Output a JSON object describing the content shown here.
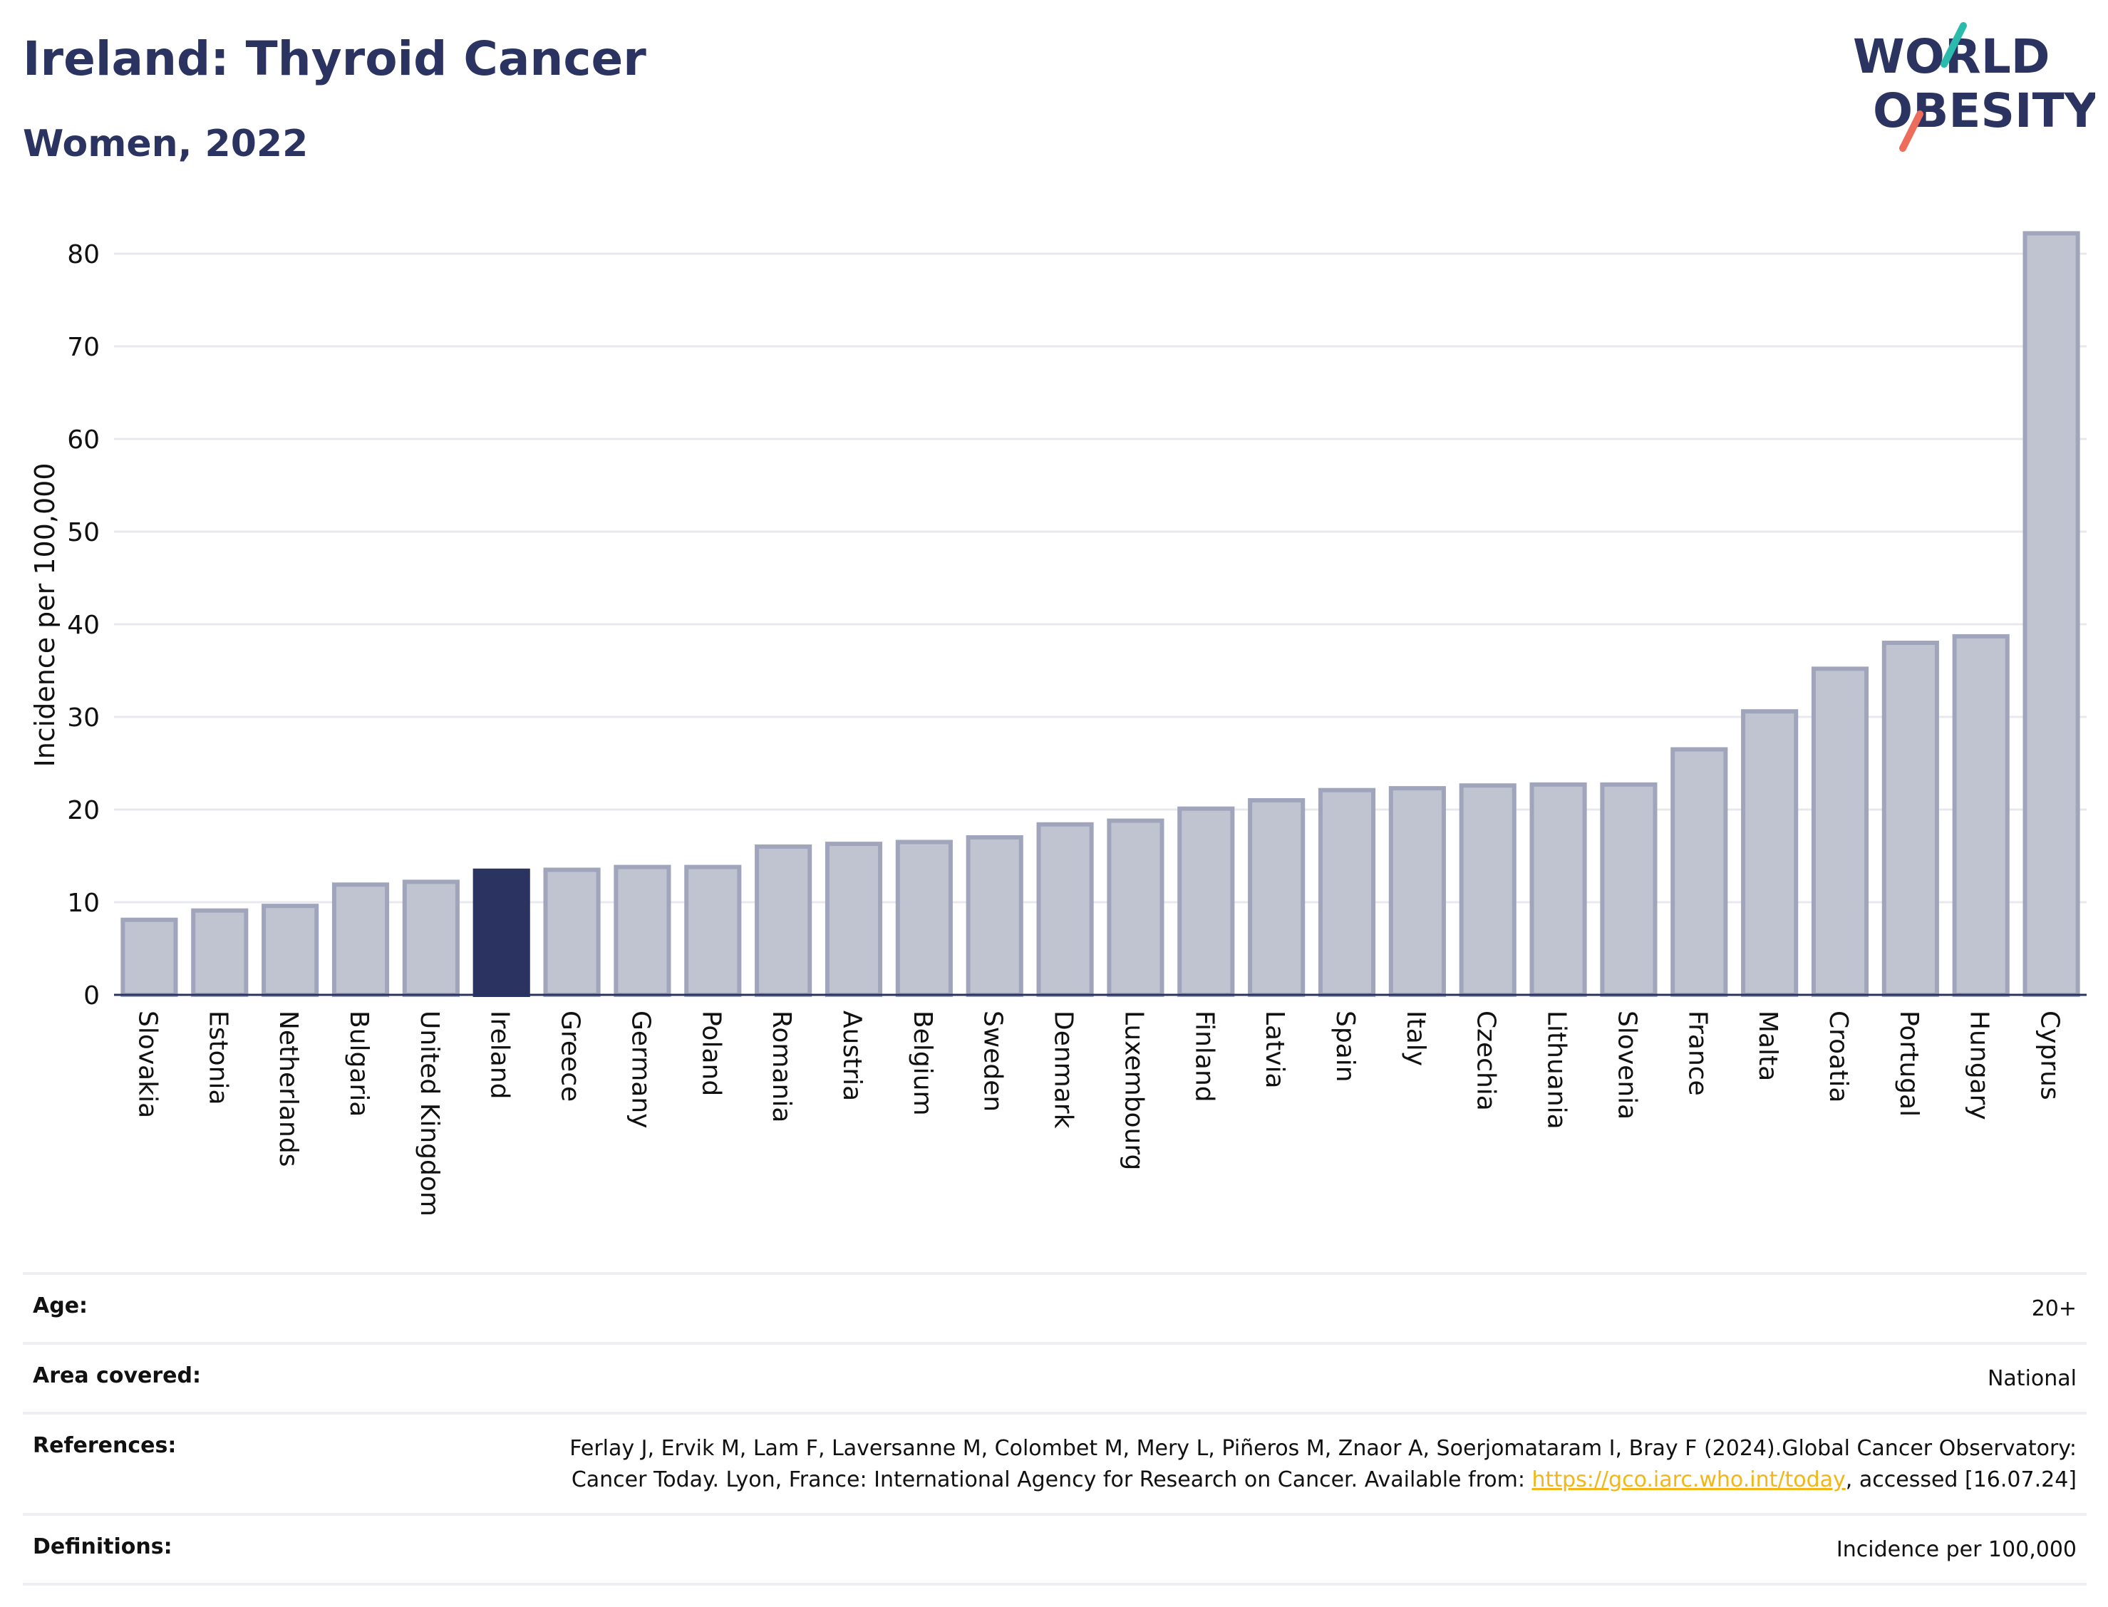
{
  "header": {
    "title": "Ireland: Thyroid Cancer",
    "subtitle": "Women, 2022",
    "logo_line1": "WORLD",
    "logo_line2": "OBESITY"
  },
  "colors": {
    "bar": "#c0c3d0",
    "bar_edge": "#a0a5bb",
    "highlight": "#2b3461",
    "text": "#2b3461",
    "link": "#f2b619"
  },
  "chart_data": {
    "type": "bar",
    "title": "Ireland: Thyroid Cancer",
    "subtitle": "Women, 2022",
    "xlabel": "",
    "ylabel": "Incidence per 100,000",
    "ylim": [
      0,
      82
    ],
    "yticks": [
      0,
      10,
      20,
      30,
      40,
      50,
      60,
      70,
      80
    ],
    "grid": true,
    "highlight": "Ireland",
    "categories": [
      "Slovakia",
      "Estonia",
      "Netherlands",
      "Bulgaria",
      "United Kingdom",
      "Ireland",
      "Greece",
      "Germany",
      "Poland",
      "Romania",
      "Austria",
      "Belgium",
      "Sweden",
      "Denmark",
      "Luxembourg",
      "Finland",
      "Latvia",
      "Spain",
      "Italy",
      "Czechia",
      "Lithuania",
      "Slovenia",
      "France",
      "Malta",
      "Croatia",
      "Portugal",
      "Hungary",
      "Cyprus"
    ],
    "values": [
      8.1,
      9.1,
      9.6,
      11.9,
      12.2,
      13.4,
      13.5,
      13.8,
      13.8,
      16.0,
      16.3,
      16.5,
      17.0,
      18.4,
      18.8,
      20.1,
      21.0,
      22.1,
      22.3,
      22.6,
      22.7,
      22.7,
      26.5,
      30.6,
      35.2,
      38.0,
      38.7,
      82.2
    ]
  },
  "meta": {
    "age_label": "Age:",
    "age_value": "20+",
    "area_label": "Area covered:",
    "area_value": "National",
    "references_label": "References:",
    "references_text": "Ferlay J, Ervik M, Lam F, Laversanne M, Colombet M, Mery L, Piñeros M, Znaor A, Soerjomataram I, Bray F (2024).Global Cancer Observatory: Cancer Today. Lyon, France: International Agency for Research on Cancer. Available from: ",
    "references_link": "https://gco.iarc.who.int/today",
    "references_tail": ", accessed [16.07.24]",
    "definitions_label": "Definitions:",
    "definitions_value": "Incidence per 100,000"
  }
}
